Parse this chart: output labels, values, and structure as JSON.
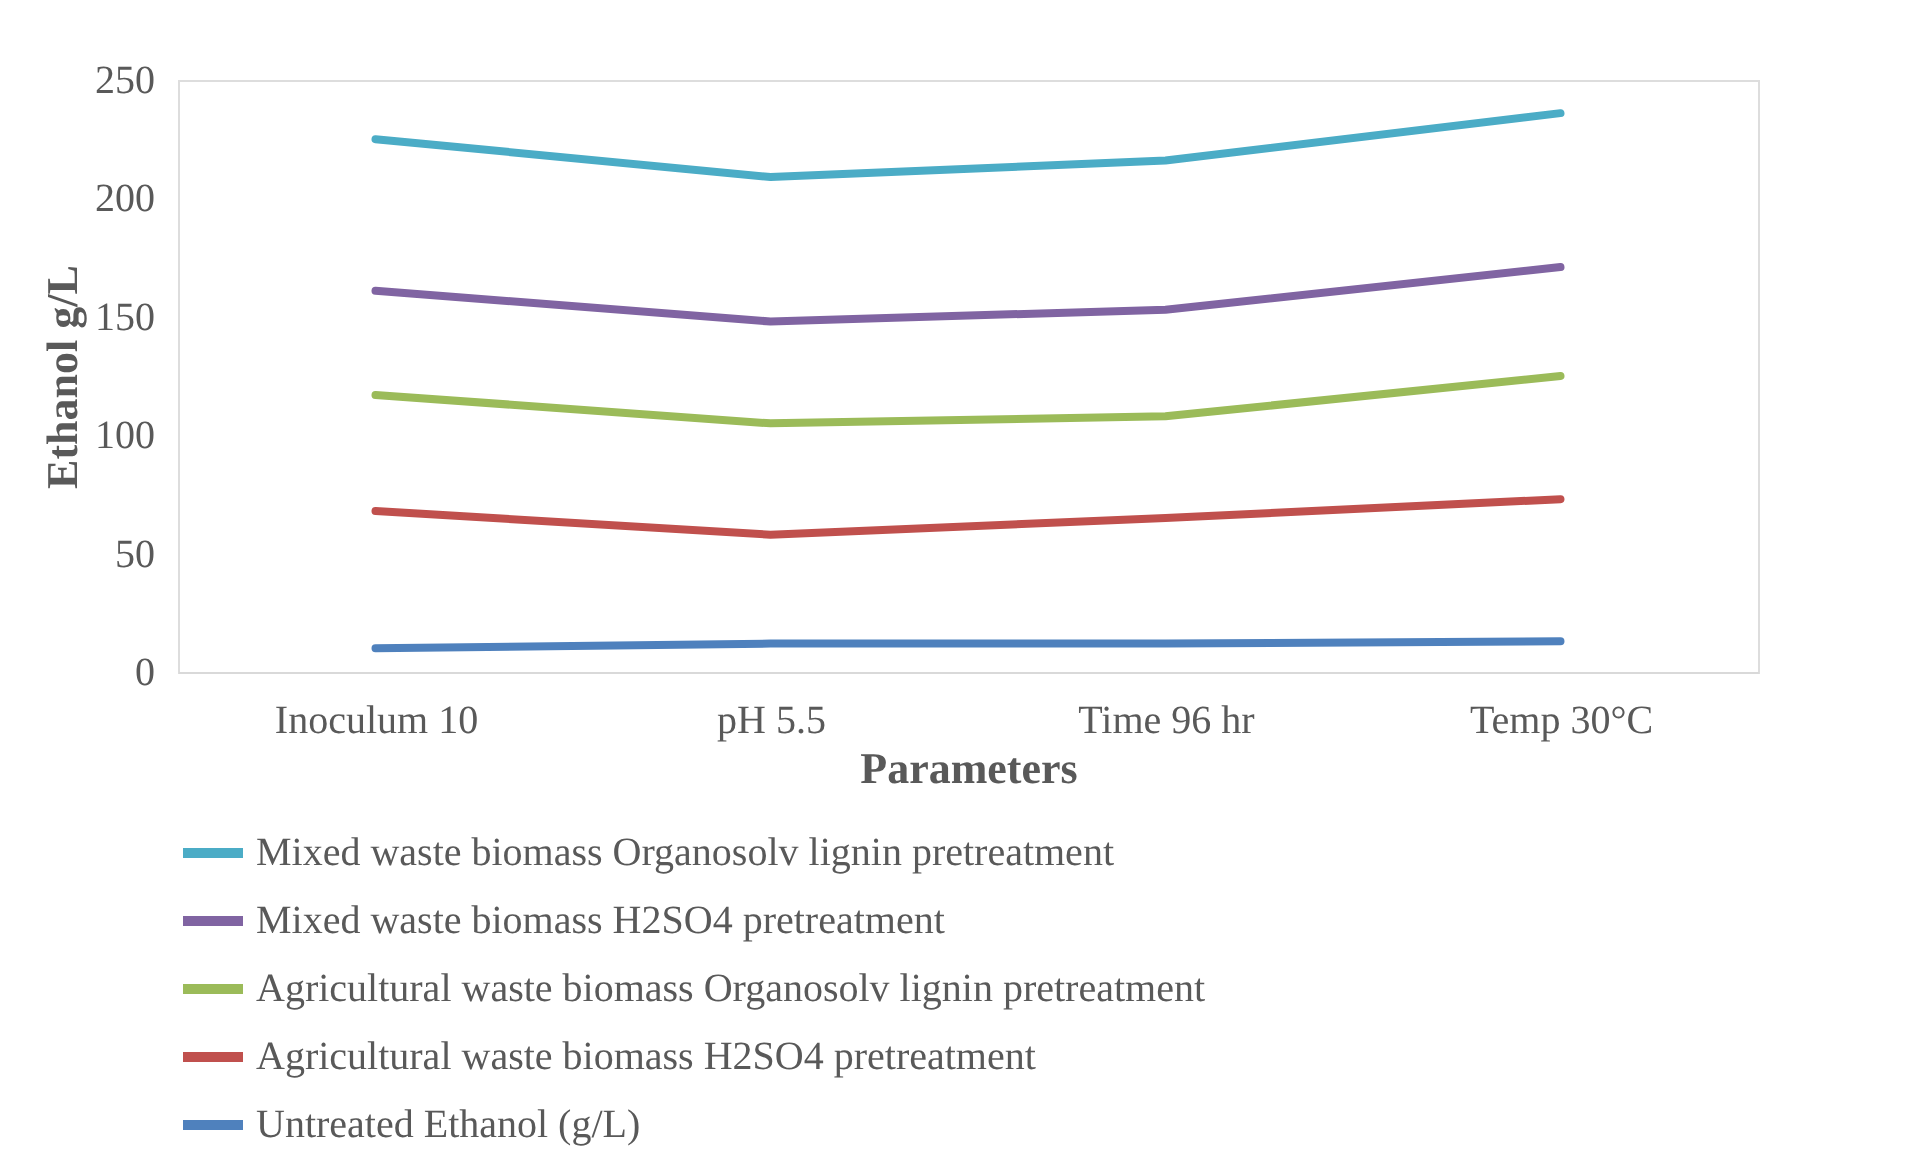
{
  "chart_data": {
    "type": "line",
    "xlabel": "Parameters",
    "ylabel": "Ethanol g/L",
    "categories": [
      "Inoculum 10",
      "pH 5.5",
      "Time 96 hr",
      "Temp 30°C"
    ],
    "series": [
      {
        "name": "Mixed waste biomass Organosolv lignin pretreatment",
        "color": "#4bacc6",
        "values": [
          225,
          209,
          216,
          236
        ]
      },
      {
        "name": "Mixed waste biomass H2SO4 pretreatment",
        "color": "#8064a2",
        "values": [
          161,
          148,
          153,
          171
        ]
      },
      {
        "name": "Agricultural waste biomass Organosolv lignin pretreatment",
        "color": "#9bbb59",
        "values": [
          117,
          105,
          108,
          125
        ]
      },
      {
        "name": "Agricultural waste biomass H2SO4 pretreatment",
        "color": "#c0504d",
        "values": [
          68,
          58,
          65,
          73
        ]
      },
      {
        "name": "Untreated Ethanol (g/L)",
        "color": "#4f81bd",
        "values": [
          10,
          12,
          12,
          13
        ]
      }
    ],
    "ylim": [
      0,
      250
    ],
    "yticks": [
      0,
      50,
      100,
      150,
      200,
      250
    ],
    "grid": false,
    "legend": "bottom",
    "marker": "none",
    "line_style": "solid"
  }
}
